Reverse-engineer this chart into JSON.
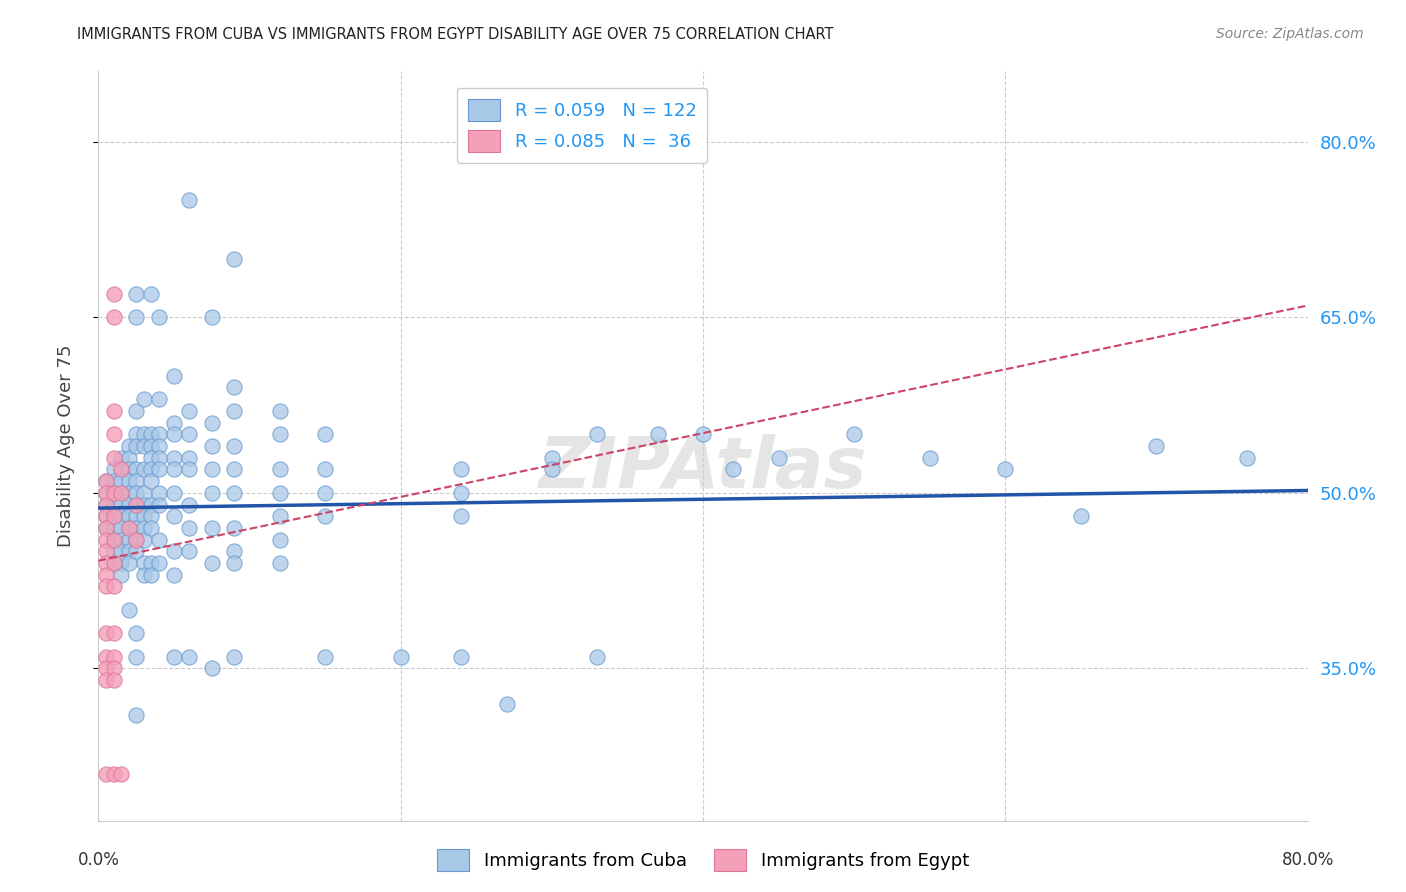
{
  "title": "IMMIGRANTS FROM CUBA VS IMMIGRANTS FROM EGYPT DISABILITY AGE OVER 75 CORRELATION CHART",
  "source": "Source: ZipAtlas.com",
  "ylabel": "Disability Age Over 75",
  "ytick_vals": [
    0.35,
    0.5,
    0.65,
    0.8
  ],
  "ytick_labels": [
    "35.0%",
    "50.0%",
    "65.0%",
    "80.0%"
  ],
  "xlim": [
    0.0,
    0.8
  ],
  "ylim": [
    0.22,
    0.86
  ],
  "cuba_color": "#a8c8e8",
  "egypt_color": "#f4a0b8",
  "cuba_edge_color": "#6699cc",
  "egypt_edge_color": "#dd7799",
  "cuba_trend_color": "#2255aa",
  "egypt_trend_color": "#cc4466",
  "watermark": "ZIPAtlas",
  "watermark_color": "#cccccc",
  "grid_color": "#cccccc",
  "label_color": "#2196F3",
  "tick_label_color": "#333333",
  "cuba_points": [
    [
      0.005,
      0.5
    ],
    [
      0.005,
      0.49
    ],
    [
      0.005,
      0.51
    ],
    [
      0.005,
      0.48
    ],
    [
      0.005,
      0.47
    ],
    [
      0.01,
      0.52
    ],
    [
      0.01,
      0.51
    ],
    [
      0.01,
      0.5
    ],
    [
      0.01,
      0.49
    ],
    [
      0.01,
      0.48
    ],
    [
      0.01,
      0.47
    ],
    [
      0.01,
      0.46
    ],
    [
      0.01,
      0.45
    ],
    [
      0.01,
      0.44
    ],
    [
      0.015,
      0.53
    ],
    [
      0.015,
      0.52
    ],
    [
      0.015,
      0.51
    ],
    [
      0.015,
      0.5
    ],
    [
      0.015,
      0.49
    ],
    [
      0.015,
      0.48
    ],
    [
      0.015,
      0.47
    ],
    [
      0.015,
      0.46
    ],
    [
      0.015,
      0.45
    ],
    [
      0.015,
      0.44
    ],
    [
      0.015,
      0.43
    ],
    [
      0.02,
      0.54
    ],
    [
      0.02,
      0.53
    ],
    [
      0.02,
      0.52
    ],
    [
      0.02,
      0.51
    ],
    [
      0.02,
      0.5
    ],
    [
      0.02,
      0.49
    ],
    [
      0.02,
      0.48
    ],
    [
      0.02,
      0.47
    ],
    [
      0.02,
      0.46
    ],
    [
      0.02,
      0.45
    ],
    [
      0.02,
      0.44
    ],
    [
      0.02,
      0.4
    ],
    [
      0.025,
      0.67
    ],
    [
      0.025,
      0.65
    ],
    [
      0.025,
      0.57
    ],
    [
      0.025,
      0.55
    ],
    [
      0.025,
      0.54
    ],
    [
      0.025,
      0.52
    ],
    [
      0.025,
      0.51
    ],
    [
      0.025,
      0.5
    ],
    [
      0.025,
      0.49
    ],
    [
      0.025,
      0.48
    ],
    [
      0.025,
      0.47
    ],
    [
      0.025,
      0.46
    ],
    [
      0.025,
      0.45
    ],
    [
      0.025,
      0.38
    ],
    [
      0.025,
      0.36
    ],
    [
      0.025,
      0.31
    ],
    [
      0.03,
      0.58
    ],
    [
      0.03,
      0.55
    ],
    [
      0.03,
      0.54
    ],
    [
      0.03,
      0.52
    ],
    [
      0.03,
      0.5
    ],
    [
      0.03,
      0.49
    ],
    [
      0.03,
      0.48
    ],
    [
      0.03,
      0.47
    ],
    [
      0.03,
      0.46
    ],
    [
      0.03,
      0.44
    ],
    [
      0.03,
      0.43
    ],
    [
      0.035,
      0.67
    ],
    [
      0.035,
      0.55
    ],
    [
      0.035,
      0.54
    ],
    [
      0.035,
      0.53
    ],
    [
      0.035,
      0.52
    ],
    [
      0.035,
      0.51
    ],
    [
      0.035,
      0.49
    ],
    [
      0.035,
      0.48
    ],
    [
      0.035,
      0.47
    ],
    [
      0.035,
      0.44
    ],
    [
      0.035,
      0.43
    ],
    [
      0.04,
      0.65
    ],
    [
      0.04,
      0.58
    ],
    [
      0.04,
      0.55
    ],
    [
      0.04,
      0.54
    ],
    [
      0.04,
      0.53
    ],
    [
      0.04,
      0.52
    ],
    [
      0.04,
      0.5
    ],
    [
      0.04,
      0.49
    ],
    [
      0.04,
      0.46
    ],
    [
      0.04,
      0.44
    ],
    [
      0.05,
      0.6
    ],
    [
      0.05,
      0.56
    ],
    [
      0.05,
      0.55
    ],
    [
      0.05,
      0.53
    ],
    [
      0.05,
      0.52
    ],
    [
      0.05,
      0.5
    ],
    [
      0.05,
      0.48
    ],
    [
      0.05,
      0.45
    ],
    [
      0.05,
      0.43
    ],
    [
      0.05,
      0.36
    ],
    [
      0.06,
      0.75
    ],
    [
      0.06,
      0.57
    ],
    [
      0.06,
      0.55
    ],
    [
      0.06,
      0.53
    ],
    [
      0.06,
      0.52
    ],
    [
      0.06,
      0.49
    ],
    [
      0.06,
      0.47
    ],
    [
      0.06,
      0.45
    ],
    [
      0.06,
      0.36
    ],
    [
      0.075,
      0.65
    ],
    [
      0.075,
      0.56
    ],
    [
      0.075,
      0.54
    ],
    [
      0.075,
      0.52
    ],
    [
      0.075,
      0.5
    ],
    [
      0.075,
      0.47
    ],
    [
      0.075,
      0.44
    ],
    [
      0.075,
      0.35
    ],
    [
      0.09,
      0.7
    ],
    [
      0.09,
      0.59
    ],
    [
      0.09,
      0.57
    ],
    [
      0.09,
      0.54
    ],
    [
      0.09,
      0.52
    ],
    [
      0.09,
      0.5
    ],
    [
      0.09,
      0.47
    ],
    [
      0.09,
      0.45
    ],
    [
      0.09,
      0.44
    ],
    [
      0.09,
      0.36
    ],
    [
      0.12,
      0.57
    ],
    [
      0.12,
      0.55
    ],
    [
      0.12,
      0.52
    ],
    [
      0.12,
      0.5
    ],
    [
      0.12,
      0.48
    ],
    [
      0.12,
      0.46
    ],
    [
      0.12,
      0.44
    ],
    [
      0.15,
      0.55
    ],
    [
      0.15,
      0.52
    ],
    [
      0.15,
      0.5
    ],
    [
      0.15,
      0.48
    ],
    [
      0.15,
      0.36
    ],
    [
      0.2,
      0.36
    ],
    [
      0.24,
      0.52
    ],
    [
      0.24,
      0.5
    ],
    [
      0.24,
      0.48
    ],
    [
      0.24,
      0.36
    ],
    [
      0.27,
      0.32
    ],
    [
      0.3,
      0.53
    ],
    [
      0.3,
      0.52
    ],
    [
      0.33,
      0.55
    ],
    [
      0.33,
      0.36
    ],
    [
      0.37,
      0.55
    ],
    [
      0.4,
      0.55
    ],
    [
      0.42,
      0.52
    ],
    [
      0.45,
      0.53
    ],
    [
      0.5,
      0.55
    ],
    [
      0.55,
      0.53
    ],
    [
      0.6,
      0.52
    ],
    [
      0.65,
      0.48
    ],
    [
      0.7,
      0.54
    ],
    [
      0.76,
      0.53
    ]
  ],
  "egypt_points": [
    [
      0.005,
      0.51
    ],
    [
      0.005,
      0.5
    ],
    [
      0.005,
      0.49
    ],
    [
      0.005,
      0.48
    ],
    [
      0.005,
      0.47
    ],
    [
      0.005,
      0.46
    ],
    [
      0.005,
      0.45
    ],
    [
      0.005,
      0.44
    ],
    [
      0.005,
      0.43
    ],
    [
      0.005,
      0.42
    ],
    [
      0.005,
      0.38
    ],
    [
      0.005,
      0.36
    ],
    [
      0.005,
      0.35
    ],
    [
      0.005,
      0.34
    ],
    [
      0.005,
      0.26
    ],
    [
      0.01,
      0.67
    ],
    [
      0.01,
      0.65
    ],
    [
      0.01,
      0.57
    ],
    [
      0.01,
      0.55
    ],
    [
      0.01,
      0.53
    ],
    [
      0.01,
      0.5
    ],
    [
      0.01,
      0.48
    ],
    [
      0.01,
      0.46
    ],
    [
      0.01,
      0.44
    ],
    [
      0.01,
      0.42
    ],
    [
      0.01,
      0.38
    ],
    [
      0.01,
      0.36
    ],
    [
      0.01,
      0.35
    ],
    [
      0.01,
      0.34
    ],
    [
      0.01,
      0.26
    ],
    [
      0.015,
      0.52
    ],
    [
      0.015,
      0.5
    ],
    [
      0.015,
      0.26
    ],
    [
      0.02,
      0.47
    ],
    [
      0.025,
      0.49
    ],
    [
      0.025,
      0.46
    ]
  ],
  "cuba_trend_x": [
    0.0,
    0.8
  ],
  "cuba_trend_y": [
    0.487,
    0.502
  ],
  "egypt_trend_x": [
    0.0,
    0.8
  ],
  "egypt_trend_y": [
    0.442,
    0.66
  ]
}
